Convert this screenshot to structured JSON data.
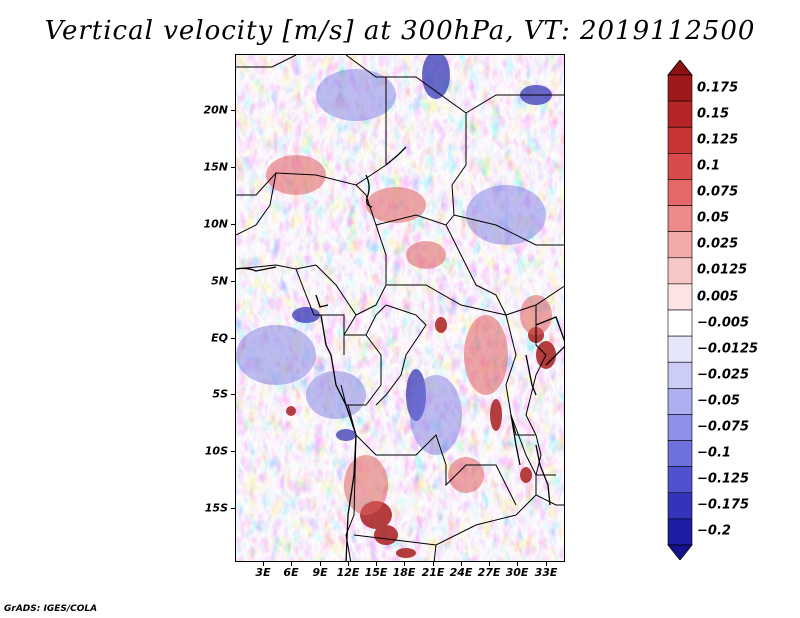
{
  "title": "Vertical velocity [m/s] at 300hPa, VT: 2019112500",
  "footer": "GrADS: IGES/COLA",
  "map": {
    "region": "Central Africa",
    "lat_range": [
      -20,
      25
    ],
    "lon_range": [
      0,
      35
    ],
    "lat_ticks": [
      {
        "value": 20,
        "label": "20N"
      },
      {
        "value": 15,
        "label": "15N"
      },
      {
        "value": 10,
        "label": "10N"
      },
      {
        "value": 5,
        "label": "5N"
      },
      {
        "value": 0,
        "label": "EQ"
      },
      {
        "value": -5,
        "label": "5S"
      },
      {
        "value": -10,
        "label": "10S"
      },
      {
        "value": -15,
        "label": "15S"
      }
    ],
    "lon_ticks": [
      {
        "value": 3,
        "label": "3E"
      },
      {
        "value": 6,
        "label": "6E"
      },
      {
        "value": 9,
        "label": "9E"
      },
      {
        "value": 12,
        "label": "12E"
      },
      {
        "value": 15,
        "label": "15E"
      },
      {
        "value": 18,
        "label": "18E"
      },
      {
        "value": 21,
        "label": "21E"
      },
      {
        "value": 24,
        "label": "24E"
      },
      {
        "value": 27,
        "label": "27E"
      },
      {
        "value": 30,
        "label": "30E"
      },
      {
        "value": 33,
        "label": "33E"
      }
    ]
  },
  "colorbar": {
    "levels": [
      {
        "label": "0.175",
        "color": "#9e1a1a"
      },
      {
        "label": "0.15",
        "color": "#b52525"
      },
      {
        "label": "0.125",
        "color": "#c93535"
      },
      {
        "label": "0.1",
        "color": "#d94a4a"
      },
      {
        "label": "0.075",
        "color": "#e46868"
      },
      {
        "label": "0.05",
        "color": "#ec8a8a"
      },
      {
        "label": "0.025",
        "color": "#f3aaaa"
      },
      {
        "label": "0.0125",
        "color": "#f8c8c8"
      },
      {
        "label": "0.005",
        "color": "#fce4e4"
      },
      {
        "label": "−0.005",
        "color": "#ffffff"
      },
      {
        "label": "−0.0125",
        "color": "#e6e6fb"
      },
      {
        "label": "−0.025",
        "color": "#cccdf6"
      },
      {
        "label": "−0.05",
        "color": "#aeaff0"
      },
      {
        "label": "−0.075",
        "color": "#8f90e8"
      },
      {
        "label": "−0.1",
        "color": "#6e70de"
      },
      {
        "label": "−0.125",
        "color": "#4f51cf"
      },
      {
        "label": "−0.175",
        "color": "#3334bb"
      },
      {
        "label": "−0.2",
        "color": "#1d1ea3"
      }
    ],
    "top_color": "#8f1010",
    "bottom_color": "#14148f"
  }
}
